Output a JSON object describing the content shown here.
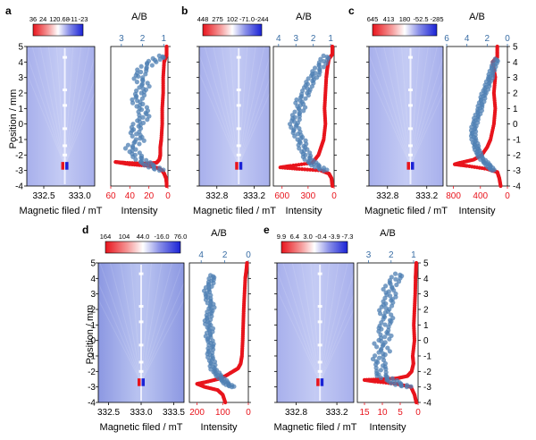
{
  "figure": {
    "y_axis_label": "Position / mm",
    "y_ticks": [
      "5",
      "4",
      "3",
      "2",
      "1",
      "0",
      "-1",
      "-2",
      "-3",
      "-4"
    ],
    "x_label_map": "Magnetic filed / mT",
    "x_label_intensity": "Intensity",
    "ratio_label": "A/B"
  },
  "chart_data": [
    {
      "panel": "a",
      "type": "scatter",
      "colorbar_labels": [
        "36",
        "24",
        "12",
        "0.68",
        "-11",
        "-23"
      ],
      "map_xticks": [
        "332.5",
        "333.0"
      ],
      "intensity_ticks": [
        "60",
        "40",
        "20",
        "0"
      ],
      "intensity_range": [
        60,
        0
      ],
      "ratio_ticks": [
        "3",
        "2",
        "1"
      ],
      "ratio_range": [
        3.5,
        0.8
      ],
      "ylim": [
        -4,
        5
      ],
      "series": [
        {
          "name": "Intensity",
          "color": "#e8141c",
          "points": [
            [
              1,
              5
            ],
            [
              1,
              4.5
            ],
            [
              3,
              4.2
            ],
            [
              4,
              4
            ],
            [
              5,
              3
            ],
            [
              5,
              2
            ],
            [
              6,
              1
            ],
            [
              6,
              0
            ],
            [
              7,
              -1
            ],
            [
              8,
              -1.5
            ],
            [
              8,
              -2
            ],
            [
              9,
              -2.3
            ],
            [
              12,
              -2.5
            ],
            [
              25,
              -2.55
            ],
            [
              45,
              -2.5
            ],
            [
              55,
              -2.45
            ],
            [
              40,
              -2.6
            ],
            [
              20,
              -2.7
            ],
            [
              10,
              -2.85
            ],
            [
              6,
              -3
            ],
            [
              4,
              -3.2
            ],
            [
              2,
              -3.5
            ],
            [
              1,
              -4
            ]
          ]
        },
        {
          "name": "A/B",
          "color": "#4d7fb3",
          "points": [
            [
              1.0,
              4.4
            ],
            [
              1.6,
              4.0
            ],
            [
              2.0,
              3.5
            ],
            [
              2.2,
              3.0
            ],
            [
              1.9,
              2.5
            ],
            [
              2.1,
              2.0
            ],
            [
              2.3,
              1.5
            ],
            [
              2.0,
              1.0
            ],
            [
              1.9,
              0.5
            ],
            [
              2.2,
              0.0
            ],
            [
              2.4,
              -0.5
            ],
            [
              2.1,
              -1.0
            ],
            [
              2.6,
              -1.5
            ],
            [
              2.3,
              -2.0
            ],
            [
              2.0,
              -2.4
            ],
            [
              1.6,
              -2.7
            ],
            [
              1.2,
              -3.0
            ]
          ]
        }
      ]
    },
    {
      "panel": "b",
      "type": "scatter",
      "colorbar_labels": [
        "448",
        "275",
        "102",
        "-71.0",
        "-244"
      ],
      "map_xticks": [
        "332.8",
        "333.2"
      ],
      "intensity_ticks": [
        "600",
        "300",
        "0"
      ],
      "intensity_range": [
        700,
        0
      ],
      "ratio_ticks": [
        "4",
        "3",
        "2",
        "1"
      ],
      "ratio_range": [
        4.3,
        0.8
      ],
      "ylim": [
        -4,
        5
      ],
      "series": [
        {
          "name": "Intensity",
          "color": "#e8141c",
          "points": [
            [
              20,
              5
            ],
            [
              20,
              4.5
            ],
            [
              60,
              4.2
            ],
            [
              80,
              3.5
            ],
            [
              90,
              3
            ],
            [
              100,
              2
            ],
            [
              110,
              1
            ],
            [
              100,
              0
            ],
            [
              120,
              -1
            ],
            [
              150,
              -1.5
            ],
            [
              180,
              -2
            ],
            [
              250,
              -2.5
            ],
            [
              500,
              -2.7
            ],
            [
              620,
              -2.8
            ],
            [
              400,
              -2.9
            ],
            [
              150,
              -3.0
            ],
            [
              60,
              -3.2
            ],
            [
              30,
              -3.5
            ],
            [
              20,
              -4
            ]
          ]
        },
        {
          "name": "A/B",
          "color": "#4d7fb3",
          "points": [
            [
              1.2,
              4.4
            ],
            [
              1.5,
              3.9
            ],
            [
              1.8,
              3.4
            ],
            [
              2.0,
              3.0
            ],
            [
              2.3,
              2.5
            ],
            [
              2.4,
              2.0
            ],
            [
              2.8,
              1.5
            ],
            [
              2.7,
              1.0
            ],
            [
              3.0,
              0.5
            ],
            [
              3.1,
              0.0
            ],
            [
              3.0,
              -0.5
            ],
            [
              2.7,
              -1.0
            ],
            [
              2.6,
              -1.5
            ],
            [
              2.4,
              -2.0
            ],
            [
              2.2,
              -2.4
            ],
            [
              1.8,
              -2.7
            ],
            [
              1.4,
              -3.0
            ]
          ]
        }
      ]
    },
    {
      "panel": "c",
      "type": "scatter",
      "colorbar_labels": [
        "645",
        "413",
        "180",
        "-52.5",
        "-285"
      ],
      "map_xticks": [
        "332.8",
        "333.2"
      ],
      "intensity_ticks": [
        "800",
        "400",
        "0"
      ],
      "intensity_range": [
        900,
        0
      ],
      "ratio_ticks": [
        "6",
        "4",
        "2",
        "0"
      ],
      "ratio_range": [
        6,
        0
      ],
      "ylim": [
        -4,
        5
      ],
      "series": [
        {
          "name": "Intensity",
          "color": "#e8141c",
          "points": [
            [
              150,
              5
            ],
            [
              150,
              4.3
            ],
            [
              220,
              4.0
            ],
            [
              200,
              3.5
            ],
            [
              180,
              3
            ],
            [
              200,
              2
            ],
            [
              180,
              1
            ],
            [
              200,
              0
            ],
            [
              250,
              -1
            ],
            [
              300,
              -1.5
            ],
            [
              380,
              -2
            ],
            [
              500,
              -2.3
            ],
            [
              700,
              -2.5
            ],
            [
              780,
              -2.6
            ],
            [
              600,
              -2.7
            ],
            [
              300,
              -2.9
            ],
            [
              150,
              -3.1
            ],
            [
              120,
              -3.5
            ],
            [
              100,
              -4
            ]
          ]
        },
        {
          "name": "A/B",
          "color": "#4d7fb3",
          "points": [
            [
              1.0,
              4.2
            ],
            [
              1.4,
              3.7
            ],
            [
              1.6,
              3.2
            ],
            [
              1.8,
              2.8
            ],
            [
              2.1,
              2.3
            ],
            [
              2.4,
              1.8
            ],
            [
              2.6,
              1.3
            ],
            [
              2.8,
              0.8
            ],
            [
              3.1,
              0.3
            ],
            [
              3.3,
              -0.2
            ],
            [
              3.4,
              -0.7
            ],
            [
              3.2,
              -1.2
            ],
            [
              3.0,
              -1.6
            ],
            [
              2.8,
              -2.0
            ],
            [
              2.3,
              -2.4
            ],
            [
              1.8,
              -2.7
            ],
            [
              1.5,
              -3.0
            ]
          ]
        }
      ]
    },
    {
      "panel": "d",
      "type": "scatter",
      "colorbar_labels": [
        "164",
        "104",
        "44.0",
        "-16.0",
        "76.0"
      ],
      "map_xticks": [
        "332.5",
        "333.0",
        "333.5"
      ],
      "intensity_ticks": [
        "200",
        "100",
        "0"
      ],
      "intensity_range": [
        230,
        0
      ],
      "ratio_ticks": [
        "4",
        "2",
        "0"
      ],
      "ratio_range": [
        5,
        0
      ],
      "ylim": [
        -4,
        5
      ],
      "series": [
        {
          "name": "Intensity",
          "color": "#e8141c",
          "points": [
            [
              5,
              5
            ],
            [
              8,
              4.5
            ],
            [
              12,
              4
            ],
            [
              15,
              3
            ],
            [
              18,
              2
            ],
            [
              20,
              1
            ],
            [
              22,
              0
            ],
            [
              25,
              -1
            ],
            [
              30,
              -1.5
            ],
            [
              40,
              -1.8
            ],
            [
              60,
              -2
            ],
            [
              90,
              -2.3
            ],
            [
              120,
              -2.5
            ],
            [
              170,
              -2.7
            ],
            [
              200,
              -2.8
            ],
            [
              170,
              -3.0
            ],
            [
              120,
              -3.2
            ],
            [
              100,
              -3.5
            ],
            [
              90,
              -4
            ]
          ]
        },
        {
          "name": "A/B",
          "color": "#4d7fb3",
          "points": [
            [
              3.0,
              4.2
            ],
            [
              3.2,
              3.7
            ],
            [
              3.5,
              3.2
            ],
            [
              3.4,
              2.7
            ],
            [
              3.1,
              2.2
            ],
            [
              3.3,
              1.7
            ],
            [
              3.5,
              1.2
            ],
            [
              3.2,
              0.7
            ],
            [
              3.4,
              0.2
            ],
            [
              3.1,
              -0.3
            ],
            [
              3.3,
              -0.8
            ],
            [
              3.1,
              -1.3
            ],
            [
              3.0,
              -1.8
            ],
            [
              2.6,
              -2.2
            ],
            [
              2.2,
              -2.5
            ],
            [
              1.8,
              -2.8
            ],
            [
              1.4,
              -3.0
            ]
          ]
        }
      ]
    },
    {
      "panel": "e",
      "type": "scatter",
      "colorbar_labels": [
        "9.9",
        "6.4",
        "3.0",
        "-0.4",
        "-3.9",
        "-7.3"
      ],
      "map_xticks": [
        "332.8",
        "333.2"
      ],
      "intensity_ticks": [
        "15",
        "10",
        "5",
        "0"
      ],
      "intensity_range": [
        17,
        0
      ],
      "ratio_ticks": [
        "3",
        "2",
        "1"
      ],
      "ratio_range": [
        3.5,
        0.8
      ],
      "ylim": [
        -4,
        5
      ],
      "series": [
        {
          "name": "Intensity",
          "color": "#e8141c",
          "points": [
            [
              0.5,
              5
            ],
            [
              0.6,
              4.5
            ],
            [
              0.7,
              4
            ],
            [
              0.8,
              3
            ],
            [
              1.0,
              2
            ],
            [
              1.2,
              1
            ],
            [
              1.0,
              0
            ],
            [
              1.5,
              -1
            ],
            [
              1.3,
              -1.5
            ],
            [
              1.8,
              -2
            ],
            [
              3,
              -2.3
            ],
            [
              6,
              -2.45
            ],
            [
              10,
              -2.5
            ],
            [
              15,
              -2.55
            ],
            [
              12,
              -2.65
            ],
            [
              6,
              -2.8
            ],
            [
              2,
              -3
            ],
            [
              1,
              -3.5
            ],
            [
              0.5,
              -4
            ]
          ]
        },
        {
          "name": "A/B",
          "color": "#4d7fb3",
          "points": [
            [
              1.6,
              4.3
            ],
            [
              1.9,
              3.8
            ],
            [
              2.1,
              3.3
            ],
            [
              2.0,
              2.8
            ],
            [
              2.2,
              2.3
            ],
            [
              2.3,
              1.8
            ],
            [
              2.1,
              1.3
            ],
            [
              2.4,
              0.8
            ],
            [
              2.2,
              0.3
            ],
            [
              2.5,
              -0.2
            ],
            [
              2.3,
              -0.7
            ],
            [
              2.6,
              -1.2
            ],
            [
              2.4,
              -1.7
            ],
            [
              2.5,
              -2.2
            ],
            [
              2.1,
              -2.5
            ],
            [
              1.7,
              -2.8
            ],
            [
              1.3,
              -3.0
            ]
          ]
        }
      ]
    }
  ]
}
